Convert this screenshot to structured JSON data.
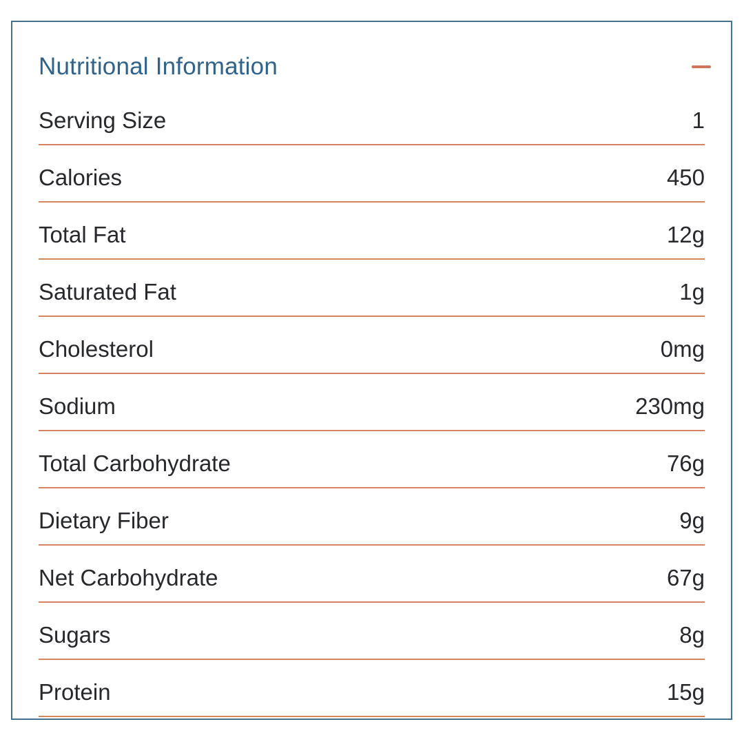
{
  "panel": {
    "title": "Nutritional Information",
    "collapse_icon": "minus-icon",
    "colors": {
      "title": "#2f628c",
      "border": "#42708f",
      "divider": "#d6835f",
      "accent": "#d0745a",
      "text": "#26282c"
    },
    "rows": [
      {
        "label": "Serving Size",
        "value": "1"
      },
      {
        "label": "Calories",
        "value": "450"
      },
      {
        "label": "Total Fat",
        "value": "12g"
      },
      {
        "label": "Saturated Fat",
        "value": "1g"
      },
      {
        "label": "Cholesterol",
        "value": "0mg"
      },
      {
        "label": "Sodium",
        "value": "230mg"
      },
      {
        "label": "Total Carbohydrate",
        "value": "76g"
      },
      {
        "label": "Dietary Fiber",
        "value": "9g"
      },
      {
        "label": "Net Carbohydrate",
        "value": "67g"
      },
      {
        "label": "Sugars",
        "value": "8g"
      },
      {
        "label": "Protein",
        "value": "15g"
      }
    ]
  }
}
